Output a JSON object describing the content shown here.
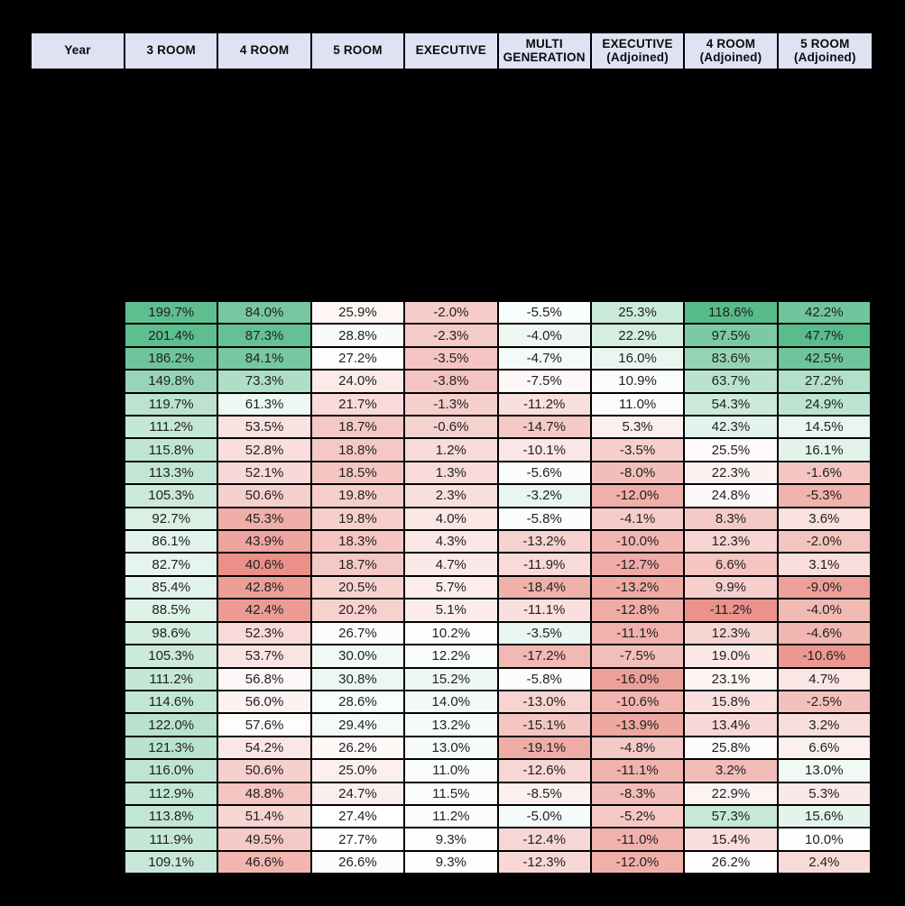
{
  "chart_data": {
    "type": "table",
    "columns": [
      "Year",
      "3 ROOM",
      "4 ROOM",
      "5 ROOM",
      "EXECUTIVE",
      "MULTI GENERATION",
      "EXECUTIVE (Adjoined)",
      "4 ROOM (Adjoined)",
      "5 ROOM (Adjoined)"
    ],
    "year_column_values_visible": false,
    "rows": [
      [
        "199.7%",
        "84.0%",
        "25.9%",
        "-2.0%",
        "-5.5%",
        "25.3%",
        "118.6%",
        "42.2%"
      ],
      [
        "201.4%",
        "87.3%",
        "28.8%",
        "-2.3%",
        "-4.0%",
        "22.2%",
        "97.5%",
        "47.7%"
      ],
      [
        "186.2%",
        "84.1%",
        "27.2%",
        "-3.5%",
        "-4.7%",
        "16.0%",
        "83.6%",
        "42.5%"
      ],
      [
        "149.8%",
        "73.3%",
        "24.0%",
        "-3.8%",
        "-7.5%",
        "10.9%",
        "63.7%",
        "27.2%"
      ],
      [
        "119.7%",
        "61.3%",
        "21.7%",
        "-1.3%",
        "-11.2%",
        "11.0%",
        "54.3%",
        "24.9%"
      ],
      [
        "111.2%",
        "53.5%",
        "18.7%",
        "-0.6%",
        "-14.7%",
        "5.3%",
        "42.3%",
        "14.5%"
      ],
      [
        "115.8%",
        "52.8%",
        "18.8%",
        "1.2%",
        "-10.1%",
        "-3.5%",
        "25.5%",
        "16.1%"
      ],
      [
        "113.3%",
        "52.1%",
        "18.5%",
        "1.3%",
        "-5.6%",
        "-8.0%",
        "22.3%",
        "-1.6%"
      ],
      [
        "105.3%",
        "50.6%",
        "19.8%",
        "2.3%",
        "-3.2%",
        "-12.0%",
        "24.8%",
        "-5.3%"
      ],
      [
        "92.7%",
        "45.3%",
        "19.8%",
        "4.0%",
        "-5.8%",
        "-4.1%",
        "8.3%",
        "3.6%"
      ],
      [
        "86.1%",
        "43.9%",
        "18.3%",
        "4.3%",
        "-13.2%",
        "-10.0%",
        "12.3%",
        "-2.0%"
      ],
      [
        "82.7%",
        "40.6%",
        "18.7%",
        "4.7%",
        "-11.9%",
        "-12.7%",
        "6.6%",
        "3.1%"
      ],
      [
        "85.4%",
        "42.8%",
        "20.5%",
        "5.7%",
        "-18.4%",
        "-13.2%",
        "9.9%",
        "-9.0%"
      ],
      [
        "88.5%",
        "42.4%",
        "20.2%",
        "5.1%",
        "-11.1%",
        "-12.8%",
        "-11.2%",
        "-4.0%"
      ],
      [
        "98.6%",
        "52.3%",
        "26.7%",
        "10.2%",
        "-3.5%",
        "-11.1%",
        "12.3%",
        "-4.6%"
      ],
      [
        "105.3%",
        "53.7%",
        "30.0%",
        "12.2%",
        "-17.2%",
        "-7.5%",
        "19.0%",
        "-10.6%"
      ],
      [
        "111.2%",
        "56.8%",
        "30.8%",
        "15.2%",
        "-5.8%",
        "-16.0%",
        "23.1%",
        "4.7%"
      ],
      [
        "114.6%",
        "56.0%",
        "28.6%",
        "14.0%",
        "-13.0%",
        "-10.6%",
        "15.8%",
        "-2.5%"
      ],
      [
        "122.0%",
        "57.6%",
        "29.4%",
        "13.2%",
        "-15.1%",
        "-13.9%",
        "13.4%",
        "3.2%"
      ],
      [
        "121.3%",
        "54.2%",
        "26.2%",
        "13.0%",
        "-19.1%",
        "-4.8%",
        "25.8%",
        "6.6%"
      ],
      [
        "116.0%",
        "50.6%",
        "25.0%",
        "11.0%",
        "-12.6%",
        "-11.1%",
        "3.2%",
        "13.0%"
      ],
      [
        "112.9%",
        "48.8%",
        "24.7%",
        "11.5%",
        "-8.5%",
        "-8.3%",
        "22.9%",
        "5.3%"
      ],
      [
        "113.8%",
        "51.4%",
        "27.4%",
        "11.2%",
        "-5.0%",
        "-5.2%",
        "57.3%",
        "15.6%"
      ],
      [
        "111.9%",
        "49.5%",
        "27.7%",
        "9.3%",
        "-12.4%",
        "-11.0%",
        "15.4%",
        "10.0%"
      ],
      [
        "109.1%",
        "46.6%",
        "26.6%",
        "9.3%",
        "-12.3%",
        "-12.0%",
        "26.2%",
        "2.4%"
      ]
    ],
    "color_scale": {
      "negative_color": "#e67c73",
      "neutral_color": "#ffffff",
      "positive_color": "#57bb8a",
      "column_anchors": [
        {
          "min": -88.0,
          "mid": 60.0,
          "max": 207.0
        },
        {
          "min": 37.5,
          "mid": 58.0,
          "max": 90.0
        },
        {
          "min": 7.0,
          "mid": 27.3,
          "max": 57.0
        },
        {
          "min": -20.5,
          "mid": 9.8,
          "max": 64.0
        },
        {
          "min": -26.5,
          "mid": -6.3,
          "max": 16.0
        },
        {
          "min": -25.5,
          "mid": 9.5,
          "max": 60.0
        },
        {
          "min": -19.0,
          "mid": 27.0,
          "max": 117.0
        },
        {
          "min": -16.0,
          "mid": 9.5,
          "max": 48.0
        }
      ]
    },
    "style": {
      "page_background": "#000000",
      "header_background": "#dee2f2",
      "header_text_color": "#0c0c10",
      "cell_text_color": "#212121",
      "gridline_color": "#000000"
    }
  }
}
